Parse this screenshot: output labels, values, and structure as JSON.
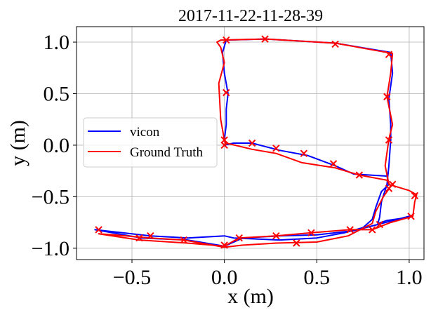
{
  "chart_data": {
    "type": "line",
    "title": "2017-11-22-11-28-39",
    "xlabel": "x (m)",
    "ylabel": "y (m)",
    "xlim": [
      -0.8,
      1.08
    ],
    "ylim": [
      -1.11,
      1.15
    ],
    "xticks": [
      -0.5,
      0.0,
      0.5,
      1.0
    ],
    "xtick_labels": [
      "−0.5",
      "0.0",
      "0.5",
      "1.0"
    ],
    "yticks": [
      -1.0,
      -0.5,
      0.0,
      0.5,
      1.0
    ],
    "ytick_labels": [
      "−1.0",
      "−0.5",
      "0.0",
      "0.5",
      "1.0"
    ],
    "grid": true,
    "legend_position": "center-left",
    "series": [
      {
        "name": "vicon",
        "color": "#0000ff",
        "marker": "none",
        "x": [
          0.01,
          0.0,
          0.01,
          0.01,
          0.02,
          0.0,
          -0.01,
          0.01,
          0.22,
          0.6,
          0.9,
          0.91,
          0.89,
          0.9,
          0.9,
          0.89,
          0.88,
          0.85,
          0.84,
          0.83,
          0.88,
          1.0,
          1.02,
          0.85,
          0.7,
          0.5,
          0.3,
          0.1,
          0.0,
          -0.2,
          -0.45,
          -0.7,
          -0.4,
          -0.2,
          0.0,
          0.05,
          0.3,
          0.5,
          0.65,
          0.75,
          0.8,
          0.82,
          0.85,
          0.89,
          0.88,
          0.7,
          0.6,
          0.45,
          0.3,
          0.15,
          0.05,
          0.0
        ],
        "y": [
          0.0,
          0.05,
          0.2,
          0.35,
          0.5,
          0.7,
          0.9,
          1.02,
          1.03,
          0.99,
          0.9,
          0.7,
          0.45,
          0.2,
          0.05,
          -0.2,
          -0.38,
          -0.55,
          -0.7,
          -0.76,
          -0.73,
          -0.7,
          -0.68,
          -0.76,
          -0.83,
          -0.87,
          -0.88,
          -0.9,
          -0.98,
          -0.92,
          -0.9,
          -0.82,
          -0.88,
          -0.9,
          -0.88,
          -0.9,
          -0.92,
          -0.9,
          -0.85,
          -0.8,
          -0.72,
          -0.6,
          -0.45,
          -0.38,
          -0.3,
          -0.28,
          -0.2,
          -0.1,
          -0.05,
          0.02,
          0.02,
          0.0
        ]
      },
      {
        "name": "Ground Truth",
        "color": "#ff0000",
        "marker": "x",
        "x": [
          0.01,
          0.0,
          -0.02,
          -0.03,
          0.0,
          -0.02,
          -0.04,
          -0.02,
          0.22,
          0.6,
          0.91,
          0.9,
          0.88,
          0.91,
          0.89,
          0.87,
          0.89,
          1.0,
          1.04,
          1.03,
          1.02,
          0.9,
          0.8,
          0.68,
          0.47,
          0.28,
          0.08,
          0.0,
          -0.2,
          -0.46,
          -0.68,
          -0.6,
          -0.4,
          -0.22,
          0.0,
          0.1,
          0.28,
          0.5,
          0.67,
          0.8,
          0.82,
          0.86,
          0.9,
          0.88,
          0.73,
          0.6,
          0.42,
          0.28,
          0.15,
          0.01,
          0.0
        ],
        "y": [
          0.0,
          0.05,
          0.25,
          0.6,
          0.8,
          0.95,
          1.0,
          1.02,
          1.03,
          0.99,
          0.89,
          0.7,
          0.47,
          0.2,
          0.06,
          -0.2,
          -0.38,
          -0.44,
          -0.48,
          -0.55,
          -0.69,
          -0.75,
          -0.82,
          -0.82,
          -0.85,
          -0.88,
          -0.9,
          -0.98,
          -0.95,
          -0.92,
          -0.86,
          -0.87,
          -0.9,
          -0.92,
          -0.99,
          -0.97,
          -0.95,
          -0.94,
          -0.88,
          -0.76,
          -0.64,
          -0.5,
          -0.4,
          -0.34,
          -0.29,
          -0.22,
          -0.17,
          -0.08,
          -0.04,
          0.02,
          0.02
        ],
        "markers": [
          [
            0.01,
            1.02
          ],
          [
            0.22,
            1.03
          ],
          [
            0.6,
            0.98
          ],
          [
            0.89,
            0.88
          ],
          [
            0.88,
            0.47
          ],
          [
            0.89,
            0.05
          ],
          [
            0.89,
            -0.42
          ],
          [
            1.03,
            -0.49
          ],
          [
            1.01,
            -0.69
          ],
          [
            0.84,
            -0.77
          ],
          [
            0.8,
            -0.82
          ],
          [
            0.68,
            -0.82
          ],
          [
            0.47,
            -0.85
          ],
          [
            0.28,
            -0.88
          ],
          [
            0.08,
            -0.9
          ],
          [
            0.0,
            -0.97
          ],
          [
            -0.22,
            -0.92
          ],
          [
            -0.4,
            -0.88
          ],
          [
            -0.46,
            -0.9
          ],
          [
            -0.68,
            -0.82
          ],
          [
            0.39,
            -0.95
          ],
          [
            0.0,
            0.0
          ],
          [
            0.15,
            0.02
          ],
          [
            0.28,
            -0.03
          ],
          [
            0.43,
            -0.08
          ],
          [
            0.59,
            -0.18
          ],
          [
            0.73,
            -0.29
          ],
          [
            0.91,
            -0.38
          ],
          [
            0.01,
            0.51
          ],
          [
            0.0,
            0.05
          ]
        ]
      }
    ]
  }
}
